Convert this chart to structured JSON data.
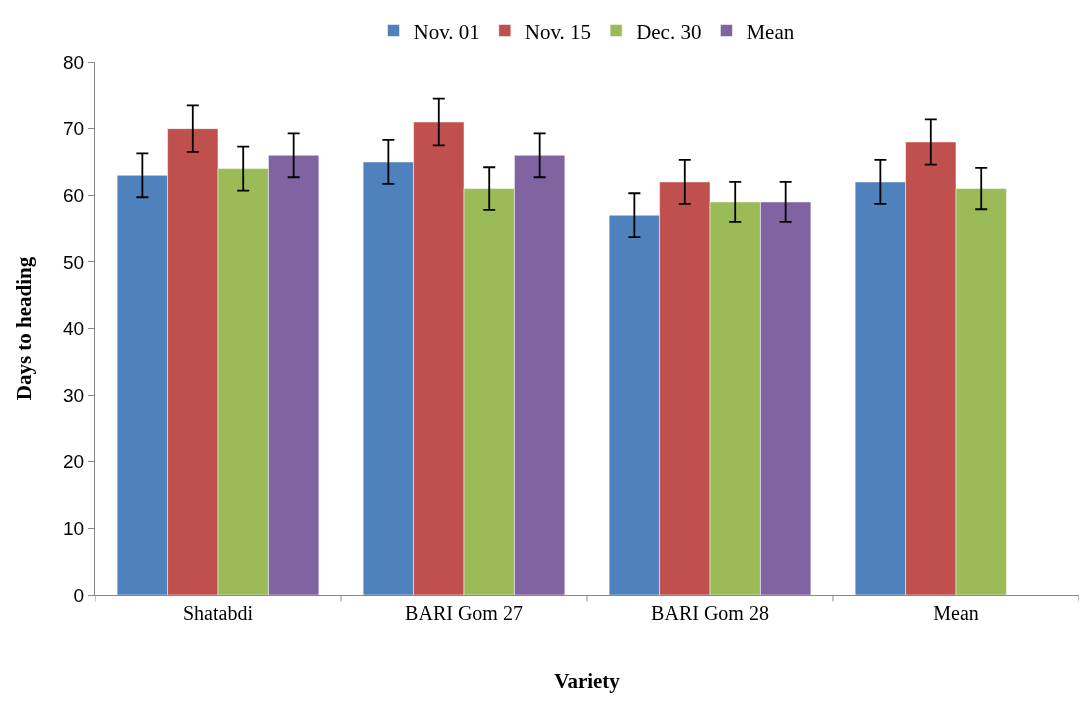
{
  "chart_data": {
    "type": "bar",
    "xlabel": "Variety",
    "ylabel": "Days to heading",
    "categories": [
      "Shatabdi",
      "BARI Gom 27",
      "BARI Gom 28",
      "Mean"
    ],
    "series": [
      {
        "name": "Nov. 01",
        "color": "#4f81bd",
        "values": [
          63,
          65,
          57,
          62
        ],
        "errors": [
          3.3,
          3.3,
          3.3,
          3.3
        ]
      },
      {
        "name": "Nov. 15",
        "color": "#c0504d",
        "values": [
          70,
          71,
          62,
          68
        ],
        "errors": [
          3.5,
          3.5,
          3.3,
          3.4
        ]
      },
      {
        "name": "Dec. 30",
        "color": "#9bbb59",
        "values": [
          64,
          61,
          59,
          61
        ],
        "errors": [
          3.3,
          3.2,
          3.0,
          3.1
        ]
      },
      {
        "name": "Mean",
        "color": "#8064a2",
        "values": [
          66,
          66,
          59,
          null
        ],
        "errors": [
          3.3,
          3.3,
          3.0,
          null
        ]
      }
    ],
    "ylim": [
      0,
      80
    ],
    "yticks": [
      0,
      10,
      20,
      30,
      40,
      50,
      60,
      70,
      80
    ],
    "legend": "top"
  }
}
